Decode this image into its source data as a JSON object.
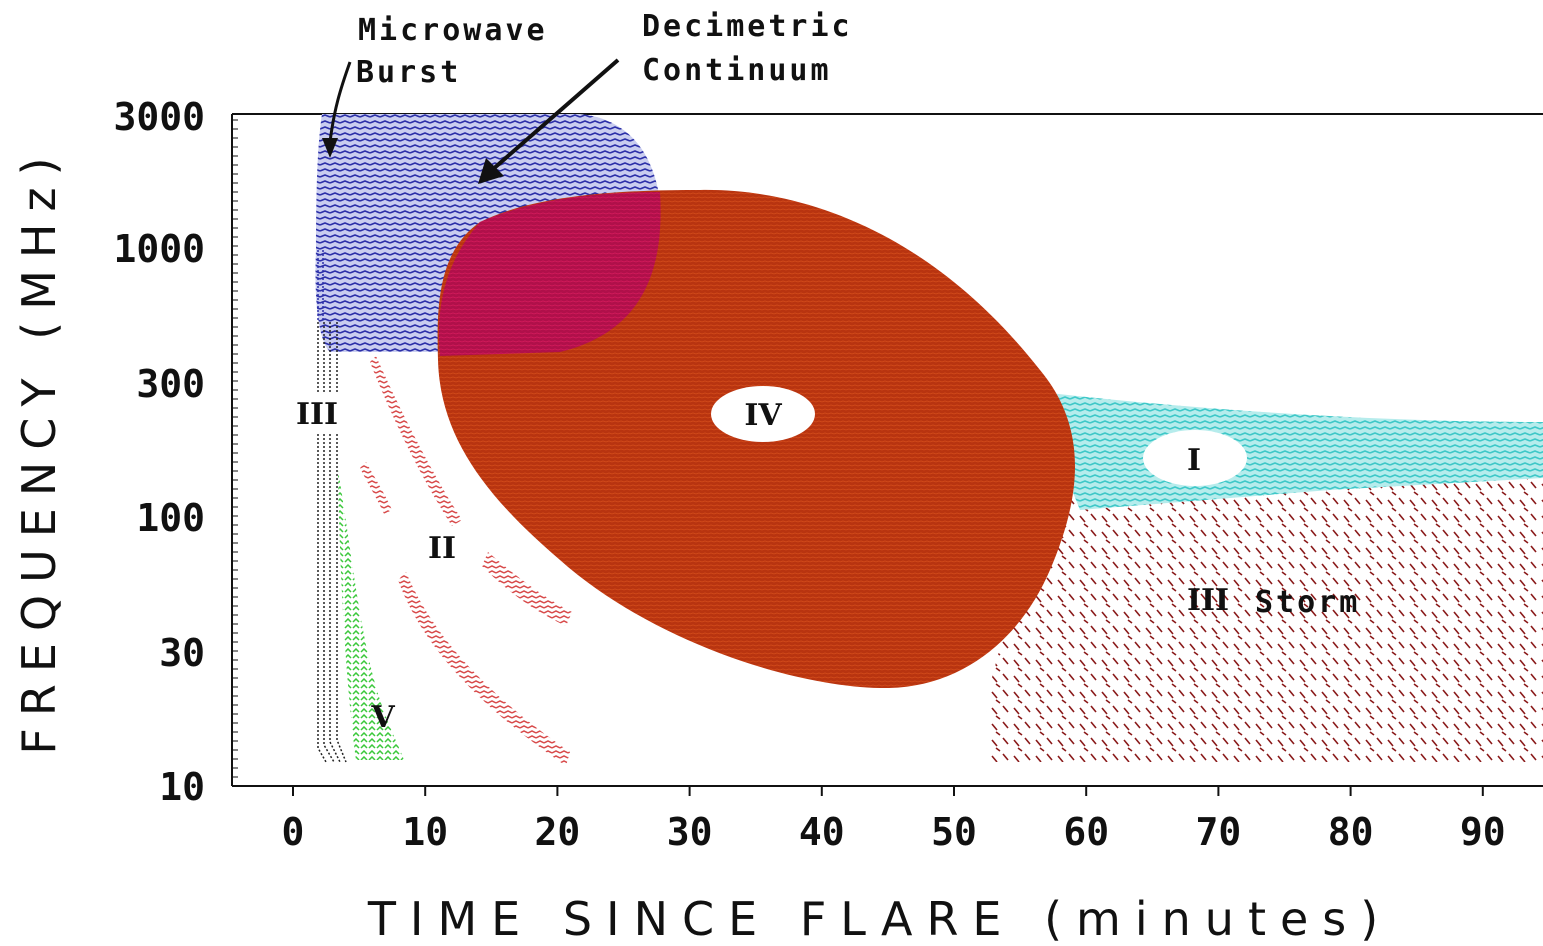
{
  "annotations": {
    "microwave_line1": "Microwave",
    "microwave_line2": "Burst",
    "decimetric_line1": "Decimetric",
    "decimetric_line2": "Continuum"
  },
  "axes": {
    "x_title": "TIME SINCE FLARE (minutes)",
    "y_title": "FREQUENCY (MHz)",
    "x_ticks": [
      "0",
      "10",
      "20",
      "30",
      "40",
      "50",
      "60",
      "70",
      "80",
      "90"
    ],
    "y_ticks": [
      "10",
      "30",
      "100",
      "300",
      "1000",
      "3000"
    ],
    "x_range": [
      -5,
      95
    ],
    "y_range_mhz": [
      10,
      3000
    ],
    "y_scale": "log"
  },
  "regions": {
    "type_iv": "IV",
    "type_i": "I",
    "type_iii": "III",
    "type_ii": "II",
    "type_v": "V",
    "type_iii_storm_mark": "III",
    "type_iii_storm_word": "Storm"
  },
  "colors": {
    "microwave_decimetric": "#2b2fa8",
    "type_iv": "#b83410",
    "overlap": "#b0104a",
    "type_i": "#3ec8c8",
    "type_iii_storm": "#8a1a1a",
    "type_ii": "#d84a4a",
    "type_v": "#3cc83c",
    "type_iii": "#222222"
  },
  "chart_data": {
    "type": "diagram",
    "regions": [
      {
        "name": "Microwave Burst / Decimetric Continuum",
        "t_min": [
          1.5,
          27
        ],
        "f_mhz": [
          500,
          3000
        ]
      },
      {
        "name": "IV",
        "t_min": [
          11,
          59
        ],
        "f_mhz": [
          25,
          1600
        ]
      },
      {
        "name": "I",
        "t_min": [
          56,
          95
        ],
        "f_mhz": [
          100,
          300
        ]
      },
      {
        "name": "III Storm",
        "t_min": [
          52,
          95
        ],
        "f_mhz": [
          12,
          130
        ]
      },
      {
        "name": "II",
        "t_min": [
          5,
          21
        ],
        "f_mhz": [
          12,
          330
        ]
      },
      {
        "name": "V",
        "t_min": [
          4,
          8
        ],
        "f_mhz": [
          12,
          200
        ]
      },
      {
        "name": "III",
        "t_min": [
          1.5,
          4
        ],
        "f_mhz": [
          12,
          500
        ]
      }
    ]
  }
}
